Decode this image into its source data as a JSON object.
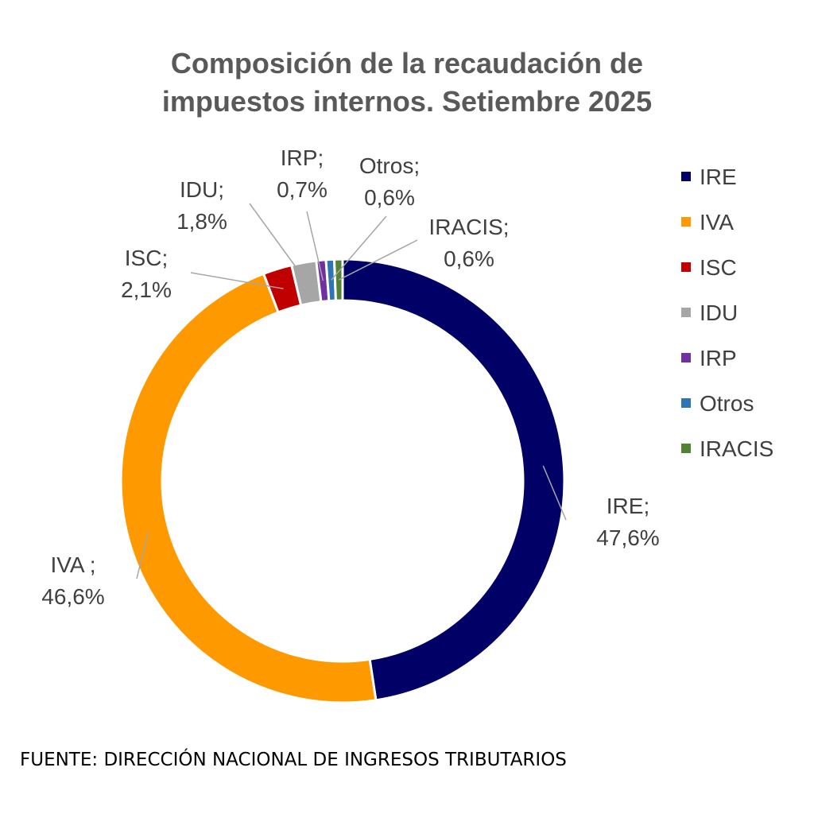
{
  "chart_data": {
    "type": "pie",
    "variant": "doughnut",
    "title": "Composición de la recaudación de impuestos internos. Setiembre 2025",
    "title_lines": [
      "Composición de la recaudación de",
      "impuestos internos. Setiembre 2025"
    ],
    "legend_position": "right",
    "slices": [
      {
        "name": "IRE",
        "value": 47.6,
        "color": "#000066",
        "label_name": "IRE;",
        "label_value": "47,6%"
      },
      {
        "name": "IVA",
        "value": 46.6,
        "color": "#FF9900",
        "label_name": "IVA ;",
        "label_value": "46,6%"
      },
      {
        "name": "ISC",
        "value": 2.1,
        "color": "#C00000",
        "label_name": "ISC;",
        "label_value": "2,1%"
      },
      {
        "name": "IDU",
        "value": 1.8,
        "color": "#A6A6A6",
        "label_name": "IDU;",
        "label_value": "1,8%"
      },
      {
        "name": "IRP",
        "value": 0.7,
        "color": "#7030A0",
        "label_name": "IRP;",
        "label_value": "0,7%"
      },
      {
        "name": "Otros",
        "value": 0.6,
        "color": "#2E75B6",
        "label_name": "Otros;",
        "label_value": "0,6%"
      },
      {
        "name": "IRACIS",
        "value": 0.6,
        "color": "#548235",
        "label_name": "IRACIS;",
        "label_value": "0,6%"
      }
    ],
    "source": "FUENTE: DIRECCIÓN NACIONAL DE INGRESOS TRIBUTARIOS"
  }
}
